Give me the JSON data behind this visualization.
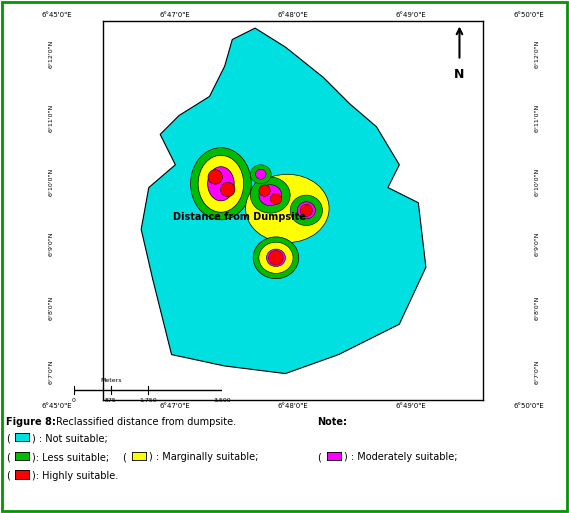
{
  "title": "Distance from Dumpsite",
  "bg_color": "#FFFFFF",
  "x_ticks_top": [
    "6°45'0\"E",
    "6°47'0\"E",
    "6°48'0\"E",
    "6°49'0\"E",
    "6°50'0\"E"
  ],
  "x_ticks_bottom": [
    "6°45'0\"E",
    "6°47'0\"E",
    "6°48'0\"E",
    "6°49'0\"E",
    "6°50'0\"E"
  ],
  "y_ticks_left": [
    "6°12'0\"N",
    "6°11'0\"N",
    "6°10'0\"N",
    "6°9'0\"N",
    "6°8'0\"N",
    "6°7'0\"N"
  ],
  "y_ticks_right": [
    "6°12'0\"N",
    "6°11'0\"N",
    "6°10'0\"N",
    "6°9'0\"N",
    "6°8'0\"N",
    "6°7'0\"N"
  ],
  "scalebar_values": [
    "0",
    "875",
    "1,750",
    "3,500"
  ],
  "scalebar_label": "Meters",
  "not_suitable_color": "#00E0E0",
  "less_suitable_color": "#00BB00",
  "marginally_color": "#FFFF00",
  "moderately_color": "#FF00FF",
  "highly_color": "#FF0000",
  "border_color": "#009900",
  "caption_line1": "Figure 8:",
  "caption_line1_rest": " Reclassified distance from dumpsite. ",
  "caption_note": "Note:",
  "caption_c1": ") : Not suitable;",
  "caption_c2": "): Less suitable;",
  "caption_c3": ") : Marginally suitable;",
  "caption_c4": ") : Moderately suitable;",
  "caption_c5": "): Highly suitable."
}
